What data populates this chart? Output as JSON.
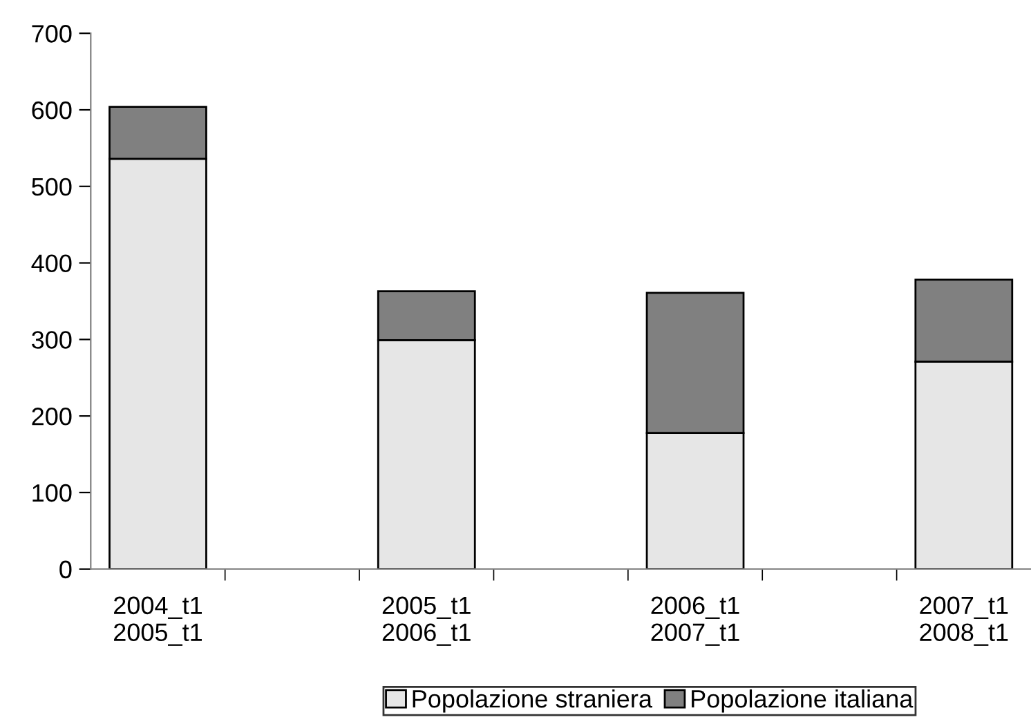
{
  "chart_data": {
    "type": "bar",
    "stacked": true,
    "categories": [
      "2004_t1\n2005_t1",
      null,
      "2005_t1\n2006_t1",
      null,
      "2006_t1\n2007_t1",
      null,
      "2007_t1\n2008_t1"
    ],
    "series": [
      {
        "name": "Popolazione straniera",
        "color": "#e6e6e6",
        "values": [
          536,
          null,
          299,
          null,
          178,
          null,
          271
        ]
      },
      {
        "name": "Popolazione italiana",
        "color": "#808080",
        "values": [
          68,
          null,
          64,
          null,
          183,
          null,
          107
        ]
      }
    ],
    "ylim": [
      0,
      700
    ],
    "yticks": [
      0,
      100,
      200,
      300,
      400,
      500,
      600,
      700
    ],
    "grid": false,
    "legend": "bottom"
  }
}
